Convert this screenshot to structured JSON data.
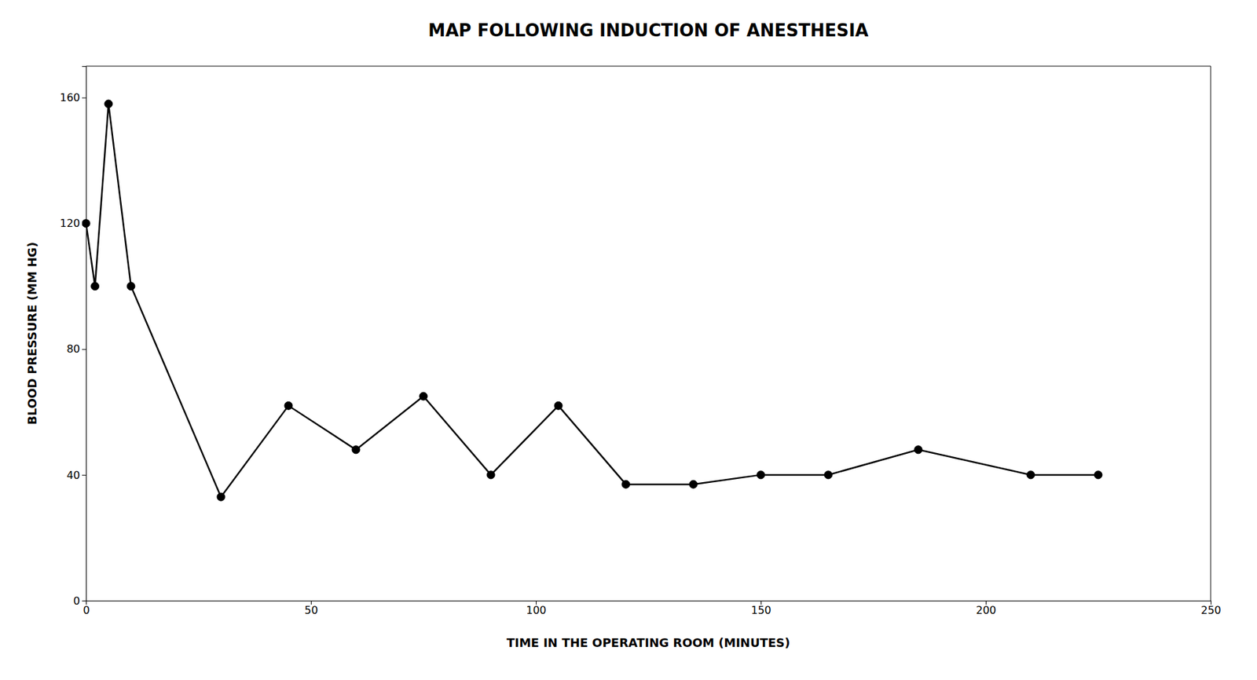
{
  "chart_data": {
    "type": "line",
    "title": "MAP FOLLOWING INDUCTION OF ANESTHESIA",
    "x_label": "TIME IN THE OPERATING ROOM (MINUTES)",
    "y_label": "BLOOD PRESSURE (MM HG)",
    "x": [
      0,
      2,
      5,
      10,
      30,
      45,
      60,
      75,
      90,
      105,
      120,
      135,
      150,
      165,
      185,
      210,
      225
    ],
    "values": [
      120,
      100,
      158,
      100,
      33,
      62,
      48,
      65,
      40,
      62,
      37,
      37,
      40,
      40,
      48,
      40,
      40
    ],
    "color": "#000000",
    "marker": "circle",
    "xlim": [
      0,
      250
    ],
    "ylim": [
      0,
      170
    ],
    "xticks": [
      0,
      50,
      100,
      150,
      200,
      250
    ],
    "yticks": [
      0,
      40,
      80,
      120,
      160
    ],
    "grid": false
  }
}
